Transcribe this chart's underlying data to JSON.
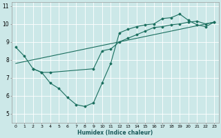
{
  "xlabel": "Humidex (Indice chaleur)",
  "xlim": [
    -0.5,
    23.5
  ],
  "ylim": [
    4.5,
    11.2
  ],
  "xticks": [
    0,
    1,
    2,
    3,
    4,
    5,
    6,
    7,
    8,
    9,
    10,
    11,
    12,
    13,
    14,
    15,
    16,
    17,
    18,
    19,
    20,
    21,
    22,
    23
  ],
  "yticks": [
    5,
    6,
    7,
    8,
    9,
    10,
    11
  ],
  "bg_color": "#cce8e8",
  "grid_color": "#ffffff",
  "line_color": "#1a6e5e",
  "line1_x": [
    0,
    1,
    2,
    3,
    4,
    5,
    6,
    7,
    8,
    9,
    10,
    11,
    12,
    13,
    14,
    15,
    16,
    17,
    18,
    19,
    20,
    21,
    22,
    23
  ],
  "line1_y": [
    8.7,
    8.2,
    7.5,
    7.3,
    6.7,
    6.4,
    5.9,
    5.5,
    5.4,
    5.6,
    6.7,
    7.8,
    9.5,
    9.7,
    9.85,
    9.95,
    10.0,
    10.3,
    10.35,
    10.55,
    10.2,
    9.95,
    9.85,
    10.1
  ],
  "line2_x": [
    2,
    3,
    4,
    9,
    10,
    11,
    12,
    13,
    14,
    15,
    16,
    17,
    18,
    19,
    20,
    21,
    22,
    23
  ],
  "line2_y": [
    7.5,
    7.3,
    7.3,
    7.5,
    8.5,
    8.6,
    9.0,
    9.2,
    9.4,
    9.6,
    9.8,
    9.85,
    9.95,
    10.0,
    10.1,
    10.15,
    10.0,
    10.1
  ],
  "line3_x": [
    0,
    23
  ],
  "line3_y": [
    7.8,
    10.1
  ],
  "xlabel_fontsize": 5.5,
  "tick_fontsize_x": 4.5,
  "tick_fontsize_y": 5.5
}
